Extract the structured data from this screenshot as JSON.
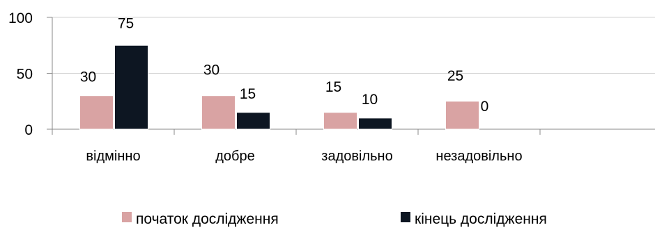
{
  "chart_data": {
    "type": "bar",
    "categories": [
      "відмінно",
      "добре",
      "задовільно",
      "незадовільно"
    ],
    "series": [
      {
        "name": "початок дослідження",
        "values": [
          30,
          30,
          15,
          25
        ],
        "color": "#d9a3a3"
      },
      {
        "name": "кінець дослідження",
        "values": [
          75,
          15,
          10,
          0
        ],
        "color": "#0d1622"
      }
    ],
    "ylim": [
      0,
      100
    ],
    "yticks": [
      0,
      50,
      100
    ],
    "grid": true,
    "legend_position": "bottom",
    "title": "",
    "xlabel": "",
    "ylabel": ""
  }
}
